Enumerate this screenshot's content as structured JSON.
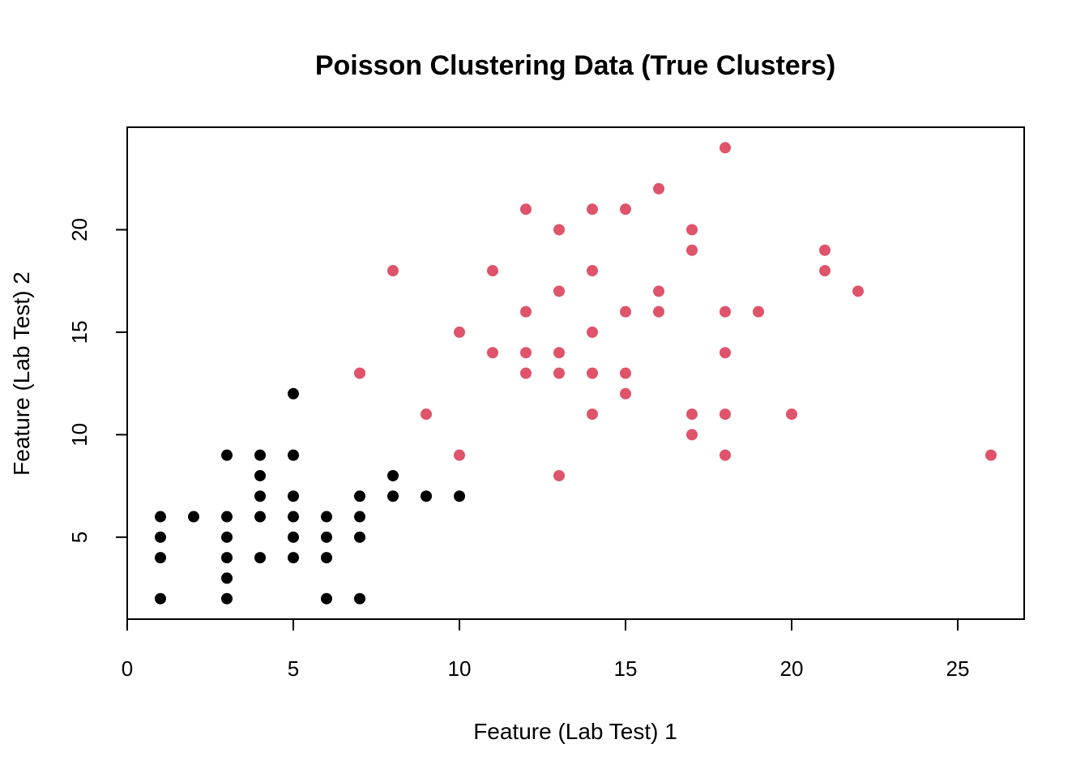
{
  "chart_data": {
    "type": "scatter",
    "title": "Poisson Clustering Data (True Clusters)",
    "xlabel": "Feature (Lab Test) 1",
    "ylabel": "Feature (Lab Test) 2",
    "xlim": [
      0,
      27
    ],
    "ylim": [
      1,
      25
    ],
    "x_ticks": [
      0,
      5,
      10,
      15,
      20,
      25
    ],
    "y_ticks": [
      5,
      10,
      15,
      20
    ],
    "grid": false,
    "series": [
      {
        "color": "#000000",
        "points": [
          [
            1,
            6
          ],
          [
            1,
            5
          ],
          [
            1,
            4
          ],
          [
            1,
            2
          ],
          [
            2,
            6
          ],
          [
            3,
            9
          ],
          [
            3,
            6
          ],
          [
            3,
            5
          ],
          [
            3,
            4
          ],
          [
            3,
            3
          ],
          [
            3,
            2
          ],
          [
            4,
            9
          ],
          [
            4,
            8
          ],
          [
            4,
            7
          ],
          [
            4,
            6
          ],
          [
            4,
            4
          ],
          [
            5,
            12
          ],
          [
            5,
            9
          ],
          [
            5,
            7
          ],
          [
            5,
            6
          ],
          [
            5,
            5
          ],
          [
            5,
            4
          ],
          [
            6,
            6
          ],
          [
            6,
            5
          ],
          [
            6,
            4
          ],
          [
            6,
            2
          ],
          [
            7,
            7
          ],
          [
            7,
            6
          ],
          [
            7,
            5
          ],
          [
            7,
            2
          ],
          [
            8,
            8
          ],
          [
            8,
            7
          ],
          [
            9,
            7
          ],
          [
            10,
            7
          ]
        ]
      },
      {
        "color": "#DF536B",
        "points": [
          [
            7,
            13
          ],
          [
            8,
            18
          ],
          [
            9,
            11
          ],
          [
            10,
            15
          ],
          [
            10,
            9
          ],
          [
            11,
            18
          ],
          [
            11,
            14
          ],
          [
            12,
            21
          ],
          [
            12,
            16
          ],
          [
            12,
            14
          ],
          [
            12,
            13
          ],
          [
            13,
            20
          ],
          [
            13,
            17
          ],
          [
            13,
            14
          ],
          [
            13,
            13
          ],
          [
            13,
            8
          ],
          [
            14,
            21
          ],
          [
            14,
            18
          ],
          [
            14,
            15
          ],
          [
            14,
            13
          ],
          [
            14,
            11
          ],
          [
            15,
            21
          ],
          [
            15,
            16
          ],
          [
            15,
            13
          ],
          [
            15,
            12
          ],
          [
            16,
            22
          ],
          [
            16,
            17
          ],
          [
            16,
            16
          ],
          [
            17,
            20
          ],
          [
            17,
            19
          ],
          [
            17,
            11
          ],
          [
            17,
            10
          ],
          [
            18,
            24
          ],
          [
            18,
            16
          ],
          [
            18,
            14
          ],
          [
            18,
            11
          ],
          [
            18,
            9
          ],
          [
            19,
            16
          ],
          [
            20,
            11
          ],
          [
            21,
            19
          ],
          [
            21,
            18
          ],
          [
            22,
            17
          ],
          [
            26,
            9
          ]
        ]
      }
    ]
  }
}
